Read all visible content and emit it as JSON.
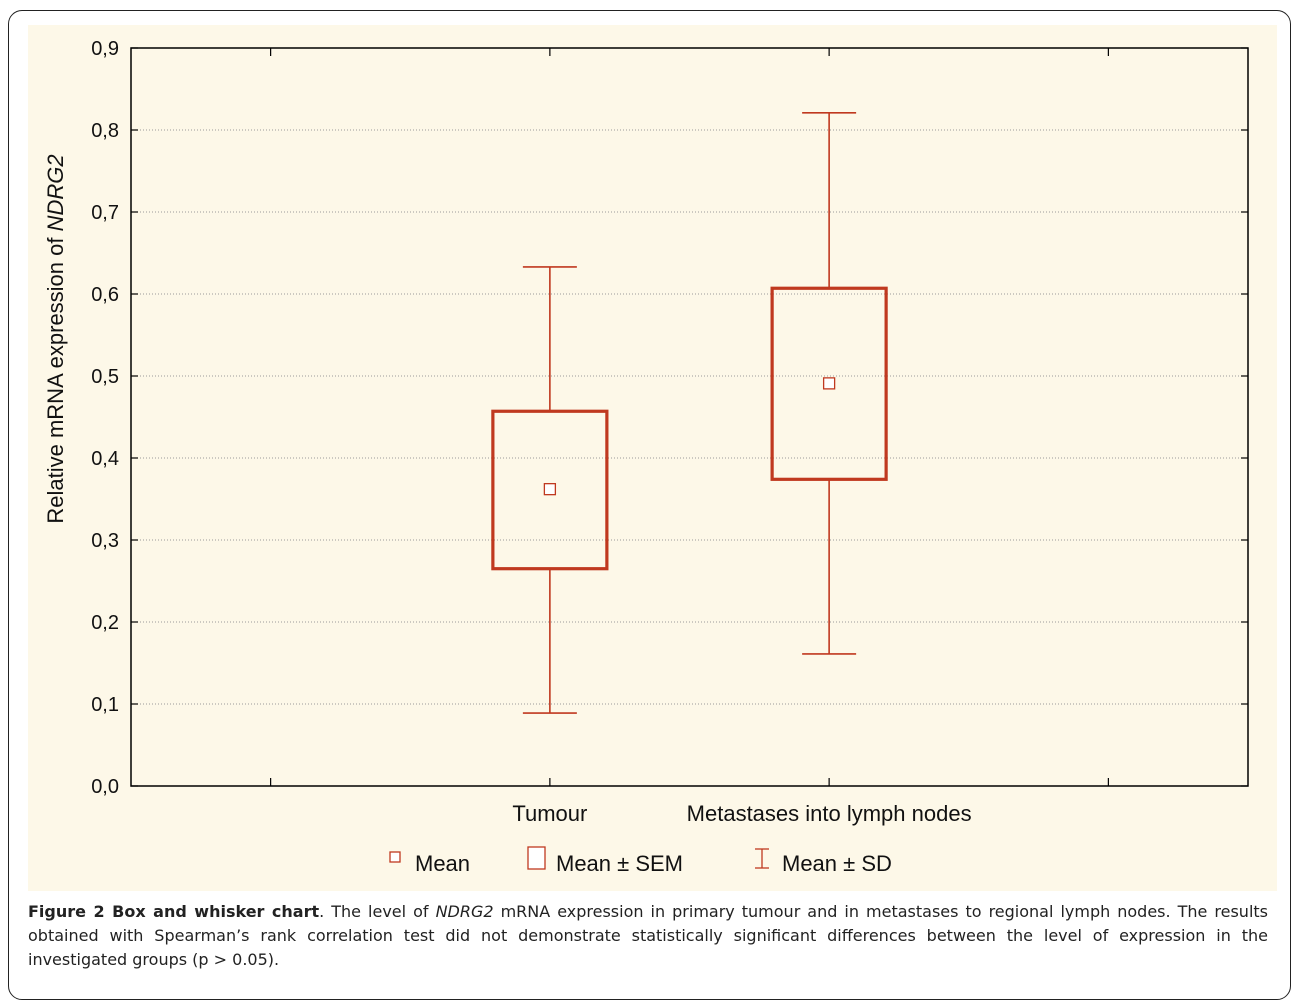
{
  "chart_data": {
    "type": "box",
    "categories": [
      "Tumour",
      "Metastases into lymph nodes"
    ],
    "series": [
      {
        "name": "Tumour",
        "mean": 0.362,
        "sem_low": 0.265,
        "sem_high": 0.457,
        "sd_low": 0.089,
        "sd_high": 0.633
      },
      {
        "name": "Metastases into lymph nodes",
        "mean": 0.491,
        "sem_low": 0.374,
        "sem_high": 0.607,
        "sd_low": 0.161,
        "sd_high": 0.821
      }
    ],
    "ylabel_prefix": "Relative mRNA expression of ",
    "ylabel_gene": "NDRG2",
    "ylim": [
      0,
      0.9
    ],
    "yticks": [
      "0,0",
      "0,1",
      "0,2",
      "0,3",
      "0,4",
      "0,5",
      "0,6",
      "0,7",
      "0,8",
      "0,9"
    ],
    "grid": true,
    "legend_position": "bottom",
    "legend": [
      "Mean",
      "Mean ± SEM",
      "Mean ± SD"
    ],
    "color": "#c0391f"
  },
  "caption": {
    "label": "Figure 2 Box and whisker chart",
    "text_1": ". The level of ",
    "gene": "NDRG2",
    "text_2": " mRNA expression in primary tumour and in metastases to regional lymph nodes. The results obtained with Spearman’s rank correlation test did not demonstrate statistically significant differences between the level of expression in the investigated groups (p > 0.05)."
  }
}
